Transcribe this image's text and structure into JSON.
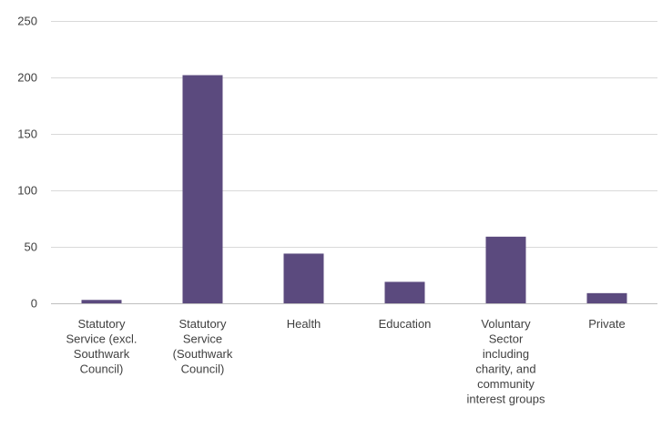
{
  "chart_data": {
    "type": "bar",
    "title": "",
    "xlabel": "",
    "ylabel": "",
    "ylim": [
      0,
      250
    ],
    "yticks": [
      0,
      50,
      100,
      150,
      200,
      250
    ],
    "grid": true,
    "legend": "none",
    "bar_color": "#5b4a7e",
    "categories": [
      [
        "Statutory",
        "Service (excl.",
        "Southwark",
        "Council)"
      ],
      [
        "Statutory",
        "Service",
        "(Southwark",
        "Council)"
      ],
      [
        "Health"
      ],
      [
        "Education"
      ],
      [
        "Voluntary",
        "Sector",
        "including",
        "charity, and",
        "community",
        "interest groups"
      ],
      [
        "Private"
      ]
    ],
    "values": [
      3,
      202,
      44,
      19,
      59,
      9
    ]
  }
}
